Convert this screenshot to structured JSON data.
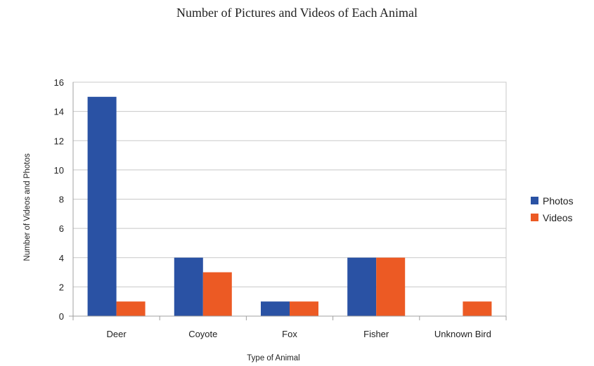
{
  "chart_data": {
    "type": "bar",
    "title": "Number of Pictures and Videos of Each Animal",
    "xlabel": "Type of Animal",
    "ylabel": "Number of Videos and Photos",
    "categories": [
      "Deer",
      "Coyote",
      "Fox",
      "Fisher",
      "Unknown  Bird"
    ],
    "series": [
      {
        "name": "Photos",
        "values": [
          15,
          4,
          1,
          4,
          0
        ],
        "color": "#2a52a4"
      },
      {
        "name": "Videos",
        "values": [
          1,
          3,
          1,
          4,
          1
        ],
        "color": "#ec5a24"
      }
    ],
    "ylim": [
      0,
      16
    ],
    "yticks": [
      0,
      2,
      4,
      6,
      8,
      10,
      12,
      14,
      16
    ],
    "grid": true,
    "legend": "right"
  }
}
